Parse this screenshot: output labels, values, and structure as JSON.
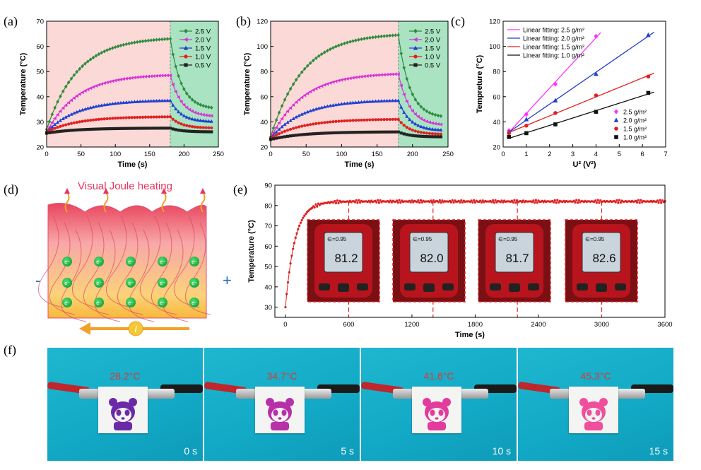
{
  "panel_labels": {
    "a": "(a)",
    "b": "(b)",
    "c": "(c)",
    "d": "(d)",
    "e": "(e)",
    "f": "(f)"
  },
  "chart_data": [
    {
      "id": "a",
      "type": "line",
      "title": "",
      "xlabel": "Time (s)",
      "ylabel": "Temperature (°C)",
      "xlim": [
        0,
        250
      ],
      "ylim": [
        20,
        70
      ],
      "xticks": [
        0,
        50,
        100,
        150,
        200,
        250
      ],
      "yticks": [
        20,
        30,
        40,
        50,
        60,
        70
      ],
      "heating_end_s": 180,
      "legend": "top-right",
      "series": [
        {
          "name": "2.5 V",
          "color": "#2e8b3e",
          "marker": "diamond",
          "start": 27,
          "peak": 63,
          "end": 35
        },
        {
          "name": "2.0 V",
          "color": "#d633d6",
          "marker": "tri-left",
          "start": 26,
          "peak": 48.5,
          "end": 32
        },
        {
          "name": "1.5 V",
          "color": "#1f3fd0",
          "marker": "tri-up",
          "start": 26,
          "peak": 38.5,
          "end": 30
        },
        {
          "name": "1.0 V",
          "color": "#e02020",
          "marker": "circle",
          "start": 26,
          "peak": 32,
          "end": 27.5
        },
        {
          "name": "0.5 V",
          "color": "#222222",
          "marker": "square",
          "start": 25.5,
          "peak": 27.5,
          "end": 26
        }
      ]
    },
    {
      "id": "b",
      "type": "line",
      "title": "",
      "xlabel": "Time (s)",
      "ylabel": "Temperature (°C)",
      "xlim": [
        0,
        250
      ],
      "ylim": [
        20,
        120
      ],
      "xticks": [
        0,
        50,
        100,
        150,
        200,
        250
      ],
      "yticks": [
        20,
        40,
        60,
        80,
        100,
        120
      ],
      "heating_end_s": 180,
      "legend": "top-right",
      "series": [
        {
          "name": "2.5 V",
          "color": "#2e8b3e",
          "marker": "diamond",
          "start": 28,
          "peak": 109,
          "end": 43
        },
        {
          "name": "2.0 V",
          "color": "#d633d6",
          "marker": "tri-left",
          "start": 27,
          "peak": 78,
          "end": 37
        },
        {
          "name": "1.5 V",
          "color": "#1f3fd0",
          "marker": "tri-up",
          "start": 27,
          "peak": 57,
          "end": 33
        },
        {
          "name": "1.0 V",
          "color": "#e02020",
          "marker": "circle",
          "start": 27,
          "peak": 42,
          "end": 30
        },
        {
          "name": "0.5 V",
          "color": "#222222",
          "marker": "square",
          "start": 26,
          "peak": 32,
          "end": 28
        }
      ]
    },
    {
      "id": "c",
      "type": "scatter",
      "title": "",
      "xlabel": "U² (V²)",
      "ylabel": "Tempreture (°C)",
      "xlim": [
        0,
        7
      ],
      "ylim": [
        20,
        120
      ],
      "xticks": [
        0,
        1,
        2,
        3,
        4,
        5,
        6,
        7
      ],
      "yticks": [
        20,
        40,
        60,
        80,
        100,
        120
      ],
      "legend_fit": [
        "Linear fitting: 2.5 g/m²",
        "Linear fitting: 2.0 g/m²",
        "Linear fitting: 1.5 g/m²",
        "Linear fitting: 1.0 g/m²"
      ],
      "series": [
        {
          "name": "2.5 g/m²",
          "color": "#ff33ff",
          "marker": "diamond",
          "x": [
            0.25,
            1.0,
            2.25,
            4.0
          ],
          "y": [
            33,
            46,
            70,
            108
          ],
          "fit_x": [
            0.2,
            4.2
          ]
        },
        {
          "name": "2.0 g/m²",
          "color": "#1f3fd0",
          "marker": "tri-up",
          "x": [
            0.25,
            1.0,
            2.25,
            4.0,
            6.25
          ],
          "y": [
            32,
            42,
            57,
            78,
            109
          ],
          "fit_x": [
            0.2,
            6.5
          ]
        },
        {
          "name": "1.5 g/m²",
          "color": "#e02020",
          "marker": "circle",
          "x": [
            0.25,
            1.0,
            2.25,
            4.0,
            6.25
          ],
          "y": [
            31,
            37,
            47,
            61,
            76
          ],
          "fit_x": [
            0.2,
            6.5
          ]
        },
        {
          "name": "1.0 g/m²",
          "color": "#111111",
          "marker": "square",
          "x": [
            0.25,
            1.0,
            2.25,
            4.0,
            6.25
          ],
          "y": [
            28,
            31,
            38,
            48,
            63
          ],
          "fit_x": [
            0.2,
            6.5
          ]
        }
      ]
    },
    {
      "id": "e",
      "type": "line",
      "title": "",
      "xlabel": "Time (s)",
      "ylabel": "Temperature (°C)",
      "xlim": [
        -100,
        3600
      ],
      "ylim": [
        25,
        90
      ],
      "xticks": [
        0,
        600,
        1200,
        1800,
        2400,
        3000,
        3600
      ],
      "yticks": [
        30,
        40,
        50,
        60,
        70,
        80,
        90
      ],
      "series": [
        {
          "name": "temperature",
          "color": "#e02020",
          "marker": "circle",
          "start": 30,
          "plateau": 82
        }
      ],
      "inset_times_s": [
        600,
        1400,
        2200,
        3000
      ],
      "thermometer_readings": [
        "81.2",
        "82.0",
        "81.7",
        "82.6"
      ],
      "thermometer_emissivity": "∈=0.95"
    }
  ],
  "panel_d": {
    "title": "Visual Joule heating",
    "minus": "-",
    "plus": "+",
    "current": "I",
    "electron": "e⁻"
  },
  "panel_f": {
    "photos": [
      {
        "temp": "28.2°C",
        "time": "0 s",
        "color": "#6a2aa8"
      },
      {
        "temp": "34.7°C",
        "time": "5 s",
        "color": "#b730a8"
      },
      {
        "temp": "41.6°C",
        "time": "10 s",
        "color": "#e23b9c"
      },
      {
        "temp": "45.3°C",
        "time": "15 s",
        "color": "#ef4f9d"
      }
    ]
  }
}
